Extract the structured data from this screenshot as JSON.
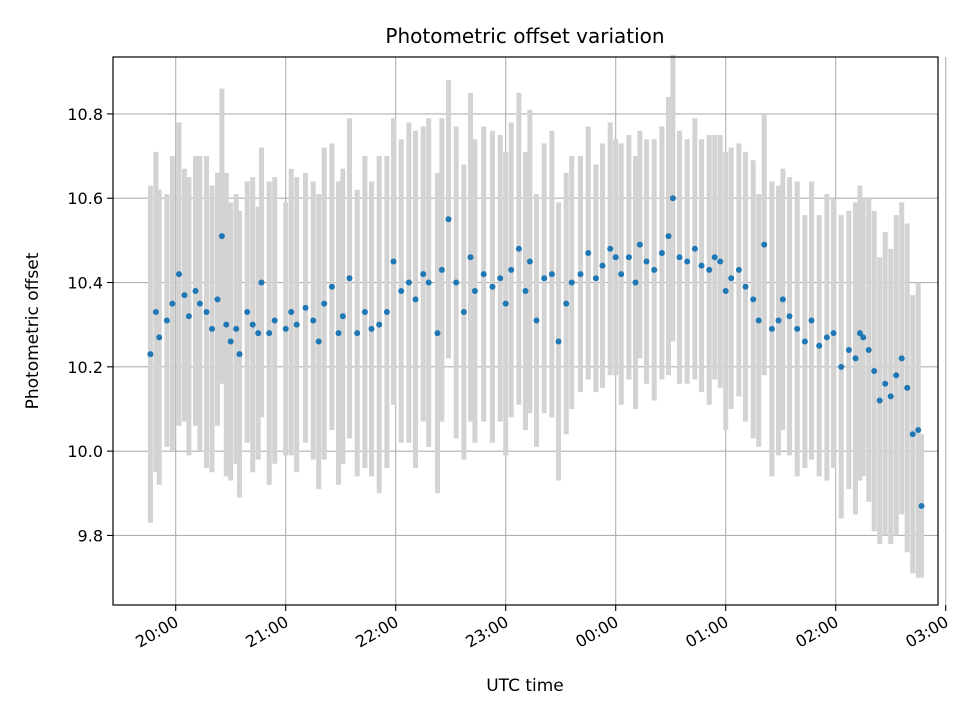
{
  "chart_data": {
    "type": "scatter",
    "title": "Photometric offset variation",
    "xlabel": "UTC time",
    "ylabel": "Photometric offset",
    "x_unit": "hours",
    "xlim": [
      -0.57,
      6.93
    ],
    "ylim": [
      9.635,
      10.935
    ],
    "grid": true,
    "colors": {
      "marker": "#1f77b4",
      "errorbar": "#d3d3d3",
      "grid": "#b0b0b0"
    },
    "x_ticks": [
      {
        "label": "20:00",
        "value": 0
      },
      {
        "label": "21:00",
        "value": 1
      },
      {
        "label": "22:00",
        "value": 2
      },
      {
        "label": "23:00",
        "value": 3
      },
      {
        "label": "00:00",
        "value": 4
      },
      {
        "label": "01:00",
        "value": 5
      },
      {
        "label": "02:00",
        "value": 6
      },
      {
        "label": "03:00",
        "value": 7
      }
    ],
    "y_ticks": [
      {
        "label": "9.8",
        "value": 9.8
      },
      {
        "label": "10.0",
        "value": 10.0
      },
      {
        "label": "10.2",
        "value": 10.2
      },
      {
        "label": "10.4",
        "value": 10.4
      },
      {
        "label": "10.6",
        "value": 10.6
      },
      {
        "label": "10.8",
        "value": 10.8
      }
    ],
    "series": [
      {
        "marker": "point-with-errorbar",
        "x": [
          -0.23,
          -0.18,
          -0.15,
          -0.08,
          -0.03,
          0.03,
          0.08,
          0.12,
          0.18,
          0.22,
          0.28,
          0.33,
          0.38,
          0.42,
          0.46,
          0.5,
          0.55,
          0.58,
          0.65,
          0.7,
          0.75,
          0.78,
          0.85,
          0.9,
          1.0,
          1.05,
          1.1,
          1.18,
          1.25,
          1.3,
          1.35,
          1.42,
          1.48,
          1.52,
          1.58,
          1.65,
          1.72,
          1.78,
          1.85,
          1.92,
          1.98,
          2.05,
          2.12,
          2.18,
          2.25,
          2.3,
          2.38,
          2.42,
          2.48,
          2.55,
          2.62,
          2.68,
          2.72,
          2.8,
          2.88,
          2.95,
          3.0,
          3.05,
          3.12,
          3.18,
          3.22,
          3.28,
          3.35,
          3.42,
          3.48,
          3.55,
          3.6,
          3.68,
          3.75,
          3.82,
          3.88,
          3.95,
          4.0,
          4.05,
          4.12,
          4.18,
          4.22,
          4.28,
          4.35,
          4.42,
          4.48,
          4.52,
          4.58,
          4.65,
          4.72,
          4.78,
          4.85,
          4.9,
          4.95,
          5.0,
          5.05,
          5.12,
          5.18,
          5.25,
          5.3,
          5.35,
          5.42,
          5.48,
          5.52,
          5.58,
          5.65,
          5.72,
          5.78,
          5.85,
          5.92,
          5.98,
          6.05,
          6.12,
          6.18,
          6.22,
          6.25,
          6.3,
          6.35,
          6.4,
          6.45,
          6.5,
          6.55,
          6.6,
          6.65,
          6.7,
          6.75,
          6.78
        ],
        "y": [
          10.23,
          10.33,
          10.27,
          10.31,
          10.35,
          10.42,
          10.37,
          10.32,
          10.38,
          10.35,
          10.33,
          10.29,
          10.36,
          10.51,
          10.3,
          10.26,
          10.29,
          10.23,
          10.33,
          10.3,
          10.28,
          10.4,
          10.28,
          10.31,
          10.29,
          10.33,
          10.3,
          10.34,
          10.31,
          10.26,
          10.35,
          10.39,
          10.28,
          10.32,
          10.41,
          10.28,
          10.33,
          10.29,
          10.3,
          10.33,
          10.45,
          10.38,
          10.4,
          10.36,
          10.42,
          10.4,
          10.28,
          10.43,
          10.55,
          10.4,
          10.33,
          10.46,
          10.38,
          10.42,
          10.39,
          10.41,
          10.35,
          10.43,
          10.48,
          10.38,
          10.45,
          10.31,
          10.41,
          10.42,
          10.26,
          10.35,
          10.4,
          10.42,
          10.47,
          10.41,
          10.44,
          10.48,
          10.46,
          10.42,
          10.46,
          10.4,
          10.49,
          10.45,
          10.43,
          10.47,
          10.51,
          10.6,
          10.46,
          10.45,
          10.48,
          10.44,
          10.43,
          10.46,
          10.45,
          10.38,
          10.41,
          10.43,
          10.39,
          10.36,
          10.31,
          10.49,
          10.29,
          10.31,
          10.36,
          10.32,
          10.29,
          10.26,
          10.31,
          10.25,
          10.27,
          10.28,
          10.2,
          10.24,
          10.22,
          10.28,
          10.27,
          10.24,
          10.19,
          10.12,
          10.16,
          10.13,
          10.18,
          10.22,
          10.15,
          10.04,
          10.05,
          9.87
        ],
        "err": [
          0.4,
          0.38,
          0.35,
          0.3,
          0.35,
          0.36,
          0.3,
          0.33,
          0.32,
          0.35,
          0.37,
          0.34,
          0.3,
          0.35,
          0.36,
          0.33,
          0.32,
          0.34,
          0.31,
          0.35,
          0.3,
          0.32,
          0.36,
          0.34,
          0.3,
          0.34,
          0.35,
          0.32,
          0.33,
          0.35,
          0.37,
          0.34,
          0.36,
          0.35,
          0.38,
          0.34,
          0.37,
          0.35,
          0.4,
          0.37,
          0.34,
          0.36,
          0.38,
          0.4,
          0.35,
          0.39,
          0.38,
          0.36,
          0.33,
          0.37,
          0.35,
          0.39,
          0.36,
          0.35,
          0.37,
          0.34,
          0.36,
          0.35,
          0.37,
          0.33,
          0.36,
          0.3,
          0.32,
          0.34,
          0.33,
          0.31,
          0.3,
          0.28,
          0.3,
          0.27,
          0.29,
          0.3,
          0.28,
          0.31,
          0.29,
          0.3,
          0.27,
          0.29,
          0.31,
          0.3,
          0.33,
          0.34,
          0.3,
          0.29,
          0.31,
          0.3,
          0.32,
          0.29,
          0.3,
          0.33,
          0.31,
          0.3,
          0.32,
          0.33,
          0.3,
          0.31,
          0.35,
          0.32,
          0.31,
          0.33,
          0.35,
          0.3,
          0.33,
          0.31,
          0.34,
          0.32,
          0.36,
          0.33,
          0.37,
          0.35,
          0.33,
          0.36,
          0.38,
          0.34,
          0.36,
          0.35,
          0.38,
          0.37,
          0.39,
          0.33,
          0.35,
          0.17
        ]
      }
    ]
  }
}
